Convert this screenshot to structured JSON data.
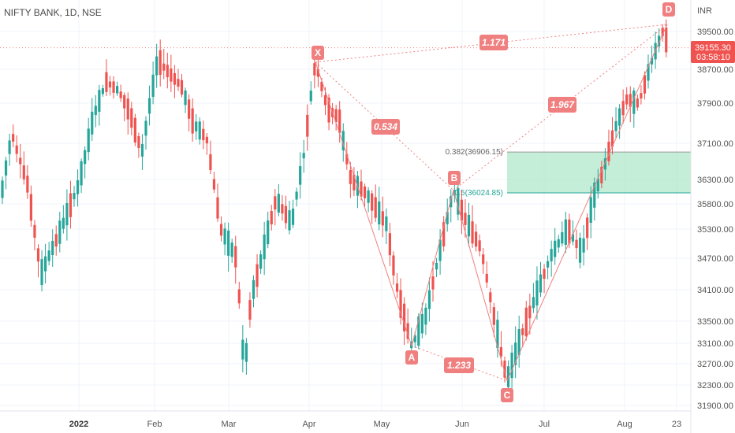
{
  "chart_data": {
    "type": "candlestick",
    "title": "NIFTY BANK, 1D, NSE",
    "currency": "INR",
    "y_ticks": [
      39500,
      38700,
      37900,
      37100,
      36300,
      35800,
      35300,
      34700,
      34100,
      33500,
      33100,
      32700,
      32300,
      31900
    ],
    "y_tick_labels": [
      "39500.00",
      "38700.00",
      "37900.00",
      "37100.00",
      "36300.00",
      "35800.00",
      "35300.00",
      "34700.00",
      "34100.00",
      "33500.00",
      "33100.00",
      "32700.00",
      "32300.00",
      "31900.00"
    ],
    "x_ticks": [
      {
        "label": "2022",
        "bold": true
      },
      {
        "label": "Feb",
        "bold": false
      },
      {
        "label": "Mar",
        "bold": false
      },
      {
        "label": "Apr",
        "bold": false
      },
      {
        "label": "May",
        "bold": false
      },
      {
        "label": "Jun",
        "bold": false
      },
      {
        "label": "Jul",
        "bold": false
      },
      {
        "label": "Aug",
        "bold": false
      },
      {
        "label": "23",
        "bold": false
      }
    ],
    "last_price": "39155.30",
    "countdown": "03:58:10",
    "pattern_points": [
      {
        "label": "X",
        "value": 38850
      },
      {
        "label": "A",
        "value": 33050
      },
      {
        "label": "B",
        "value": 36080
      },
      {
        "label": "C",
        "value": 32380
      },
      {
        "label": "D",
        "value": 39650
      }
    ],
    "ratios": [
      {
        "id": "xb",
        "label": "0.534"
      },
      {
        "id": "ac",
        "label": "1.233"
      },
      {
        "id": "bd",
        "label": "1.967"
      },
      {
        "id": "xd",
        "label": "1.171"
      }
    ],
    "fib_levels": [
      {
        "label": "0.382(36906.15)",
        "value": 36906.15
      },
      {
        "label": "0.5(36024.85)",
        "value": 36024.85
      }
    ],
    "colors": {
      "up": "#26a69a",
      "down": "#ef5350",
      "pattern": "#f08080",
      "zone": "#b2e8cc",
      "price_tag": "#ef5350"
    }
  }
}
